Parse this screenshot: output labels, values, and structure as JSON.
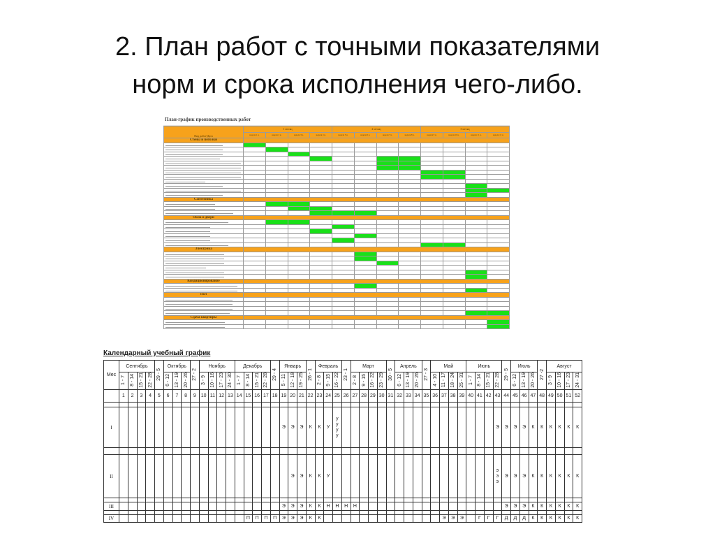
{
  "slide": {
    "title_line1": "2. План работ с точными показателями",
    "title_line2": "норм и срока исполнения чего-либо."
  },
  "gantt": {
    "title": "План-график производственных работ",
    "header_label": "Вид работ\\Дата",
    "months": [
      "1 месяц",
      "2 месяц",
      "3 месяц"
    ],
    "weeks": [
      "неделя 1 н.",
      "неделя 2 н.",
      "неделя 3 н.",
      "неделя 4 н.",
      "неделя 5 н.",
      "неделя 6 н.",
      "неделя 7 н.",
      "неделя 8 н.",
      "неделя 9 н.",
      "неделя 10 н.",
      "неделя 11 н.",
      "неделя 12 н."
    ],
    "colors": {
      "header": "#f7a21b",
      "bar": "#19e019"
    },
    "sections": [
      {
        "name": "Стены и потолки",
        "rows": [
          [
            0
          ],
          [
            1
          ],
          [
            2
          ],
          [
            3,
            6,
            7
          ],
          [
            6,
            7
          ],
          [
            6,
            7
          ],
          [
            8,
            9
          ],
          [
            8,
            9
          ],
          [],
          [
            10
          ],
          [
            10,
            11
          ],
          [
            10
          ]
        ]
      },
      {
        "name": "Сантехника",
        "rows": [
          [
            1,
            2
          ],
          [
            2,
            3
          ],
          [
            3,
            4,
            5
          ]
        ]
      },
      {
        "name": "Окна и двери",
        "rows": [
          [
            1,
            2
          ],
          [
            4
          ],
          [
            3
          ],
          [
            5
          ],
          [
            4
          ],
          [
            8,
            9
          ]
        ]
      },
      {
        "name": "Электрика",
        "rows": [
          [
            5
          ],
          [
            5
          ],
          [
            6
          ],
          [],
          [
            10
          ],
          [
            10
          ]
        ]
      },
      {
        "name": "Кондиционирование",
        "rows": [
          [
            5
          ],
          [
            10
          ]
        ]
      },
      {
        "name": "Пол",
        "rows": [
          [],
          [],
          [],
          [
            10,
            11
          ]
        ]
      },
      {
        "name": "Сдача квартиры",
        "rows": [
          [
            11
          ],
          [
            11
          ]
        ]
      }
    ]
  },
  "calendar": {
    "title": "Календарный учебный график",
    "mes_label": "Мес",
    "months": [
      {
        "label": "Сентябрь",
        "start": 1,
        "span": 4
      },
      {
        "label": "Октябрь",
        "start": 6,
        "span": 3
      },
      {
        "label": "Ноябрь",
        "start": 10,
        "span": 4
      },
      {
        "label": "Декабрь",
        "start": 14,
        "span": 4
      },
      {
        "label": "Январь",
        "start": 19,
        "span": 3
      },
      {
        "label": "Февраль",
        "start": 23,
        "span": 3
      },
      {
        "label": "Март",
        "start": 27,
        "span": 4
      },
      {
        "label": "Апрель",
        "start": 32,
        "span": 3
      },
      {
        "label": "Май",
        "start": 36,
        "span": 4
      },
      {
        "label": "Июнь",
        "start": 40,
        "span": 4
      },
      {
        "label": "Июль",
        "start": 45,
        "span": 3
      },
      {
        "label": "Август",
        "start": 49,
        "span": 4
      }
    ],
    "dates": [
      "1 - 7",
      "8 - 14",
      "15 - 21",
      "22 - 28",
      "29 - 5",
      "6 - 12",
      "13 - 19",
      "20 - 26",
      "27 - 2",
      "3 - 9",
      "10 - 16",
      "17 - 23",
      "24 - 30",
      "1 - 7",
      "8 - 14",
      "15 - 21",
      "22 - 28",
      "29 - 4",
      "5 - 11",
      "12 - 18",
      "19 - 25",
      "26 - 1",
      "2 - 8",
      "9 - 15",
      "16 - 22",
      "23 - 1",
      "2 - 8",
      "9 - 15",
      "16 - 22",
      "23 - 29",
      "30 - 5",
      "6 - 12",
      "13 - 19",
      "20 - 26",
      "27 - 3",
      "4 - 10",
      "11 - 17",
      "18 - 24",
      "25 - 31",
      "1 - 7",
      "8 - 14",
      "15 - 21",
      "22 - 28",
      "29 - 5",
      "6 - 12",
      "13 - 19",
      "20 - 26",
      "27 -2",
      "3 - 9",
      "10 - 16",
      "17 - 23",
      "24 - 31"
    ],
    "numbers": [
      "1",
      "2",
      "3",
      "4",
      "5",
      "6",
      "7",
      "8",
      "9",
      "10",
      "11",
      "12",
      "13",
      "14",
      "15",
      "16",
      "17",
      "18",
      "19",
      "20",
      "21",
      "22",
      "23",
      "24",
      "25",
      "26",
      "27",
      "28",
      "29",
      "30",
      "31",
      "32",
      "33",
      "34",
      "35",
      "36",
      "37",
      "38",
      "39",
      "40",
      "41",
      "42",
      "43",
      "44",
      "45",
      "46",
      "47",
      "48",
      "49",
      "50",
      "51",
      "52"
    ],
    "rows": [
      {
        "label": "I",
        "marks": {
          "19": "Э",
          "20": "Э",
          "21": "Э",
          "22": "К",
          "23": "К",
          "24": "У",
          "25": "у\nу\nу\nу",
          "43": "Э",
          "44": "Э",
          "45": "Э",
          "46": "Э",
          "47": "К",
          "48": "К",
          "49": "К",
          "50": "К",
          "51": "К",
          "52": "К"
        }
      },
      {
        "label": "II",
        "marks": {
          "20": "Э",
          "21": "Э",
          "22": "К",
          "23": "К",
          "24": "У",
          "43": "э\nэ\nэ",
          "44": "Э",
          "45": "Э",
          "46": "Э",
          "47": "К",
          "48": "К",
          "49": "К",
          "50": "К",
          "51": "К",
          "52": "К"
        }
      },
      {
        "label": "III",
        "marks": {
          "19": "Э",
          "20": "Э",
          "21": "Э",
          "22": "К",
          "23": "К",
          "24": "Н",
          "25": "Н",
          "26": "Н",
          "27": "Н",
          "44": "Э",
          "45": "Э",
          "46": "Э",
          "47": "К",
          "48": "К",
          "49": "К",
          "50": "К",
          "51": "К",
          "52": "К"
        }
      },
      {
        "label": "IV",
        "marks": {
          "15": "П",
          "16": "П",
          "17": "П",
          "18": "П",
          "19": "Э",
          "20": "Э",
          "21": "Э",
          "22": "К",
          "23": "К",
          "37": "Э",
          "38": "Э",
          "39": "Э",
          "41": "Г",
          "42": "Г",
          "43": "Г",
          "44": "Д",
          "45": "Д",
          "46": "Д",
          "47": "К",
          "48": "К",
          "49": "К",
          "50": "К",
          "51": "К",
          "52": "К"
        }
      }
    ]
  }
}
